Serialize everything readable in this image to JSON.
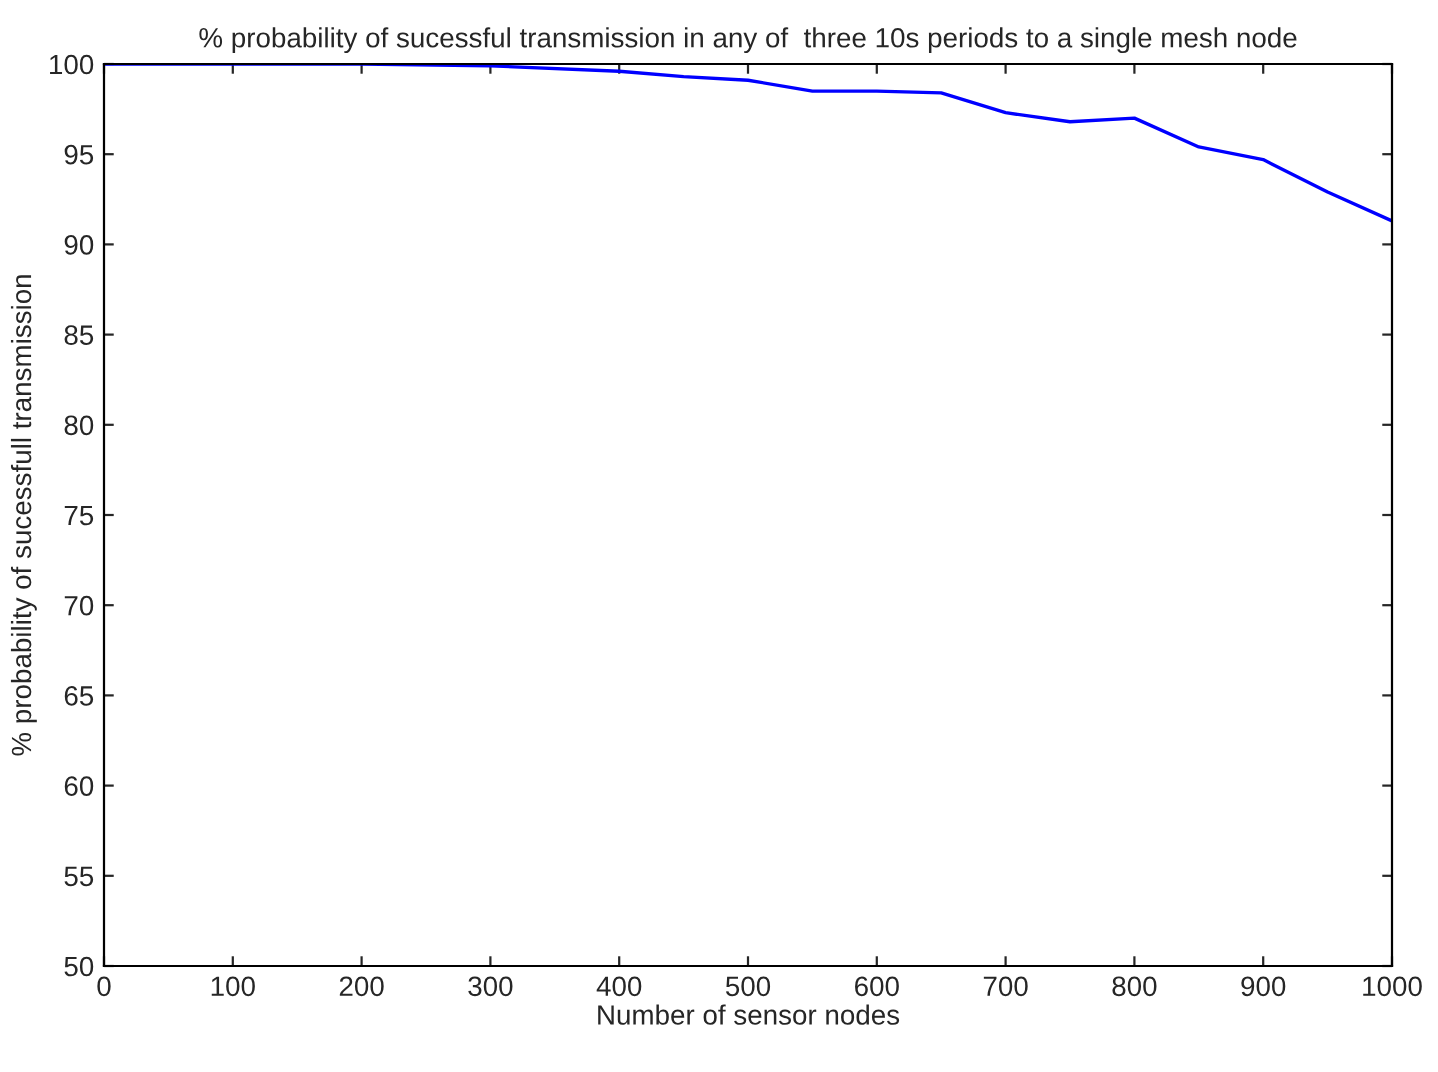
{
  "chart_data": {
    "type": "line",
    "title": "% probability of sucessful transmission in any of  three 10s periods to a single mesh node",
    "xlabel": "Number of sensor nodes",
    "ylabel": "% probability of sucessfull transmission",
    "x": [
      0,
      100,
      200,
      300,
      400,
      450,
      500,
      550,
      600,
      650,
      700,
      750,
      800,
      850,
      900,
      950,
      1000
    ],
    "series": [
      {
        "color": "#0000ff",
        "values": [
          100,
          100,
          100,
          99.9,
          99.6,
          99.3,
          99.1,
          98.5,
          98.5,
          98.4,
          97.3,
          96.8,
          97.0,
          95.4,
          94.7,
          92.9,
          91.3
        ]
      }
    ],
    "xlim": [
      0,
      1000
    ],
    "xticks": [
      0,
      100,
      200,
      300,
      400,
      500,
      600,
      700,
      800,
      900,
      1000
    ],
    "ylim": [
      50,
      100
    ],
    "yticks": [
      50,
      55,
      60,
      65,
      70,
      75,
      80,
      85,
      90,
      95,
      100
    ],
    "grid": false,
    "legend": false,
    "marker": "none",
    "line_style": "solid"
  }
}
